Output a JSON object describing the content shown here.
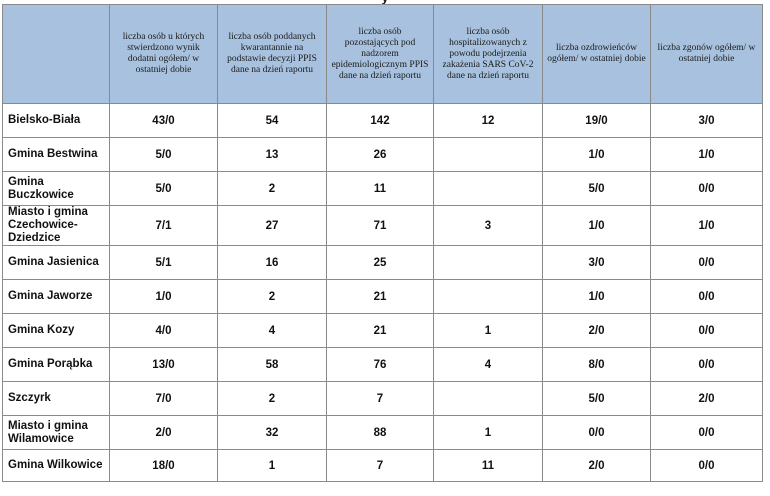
{
  "title": "y",
  "headers": [
    "",
    "liczba osób u których stwierdzono wynik dodatni ogółem/ w ostatniej dobie",
    "liczba osób poddanych kwarantannie na podstawie decyzji PPIS dane na dzień raportu",
    "liczba osób pozostających pod nadzorem epidemiologicznym PPIS dane na dzień raportu",
    "liczba osób hospitalizowanych z powodu podejrzenia zakażenia SARS CoV-2 dane na dzień raportu",
    "liczba ozdrowieńców ogółem/ w ostatniej dobie",
    "liczba zgonów ogółem/ w ostatniej dobie"
  ],
  "rows": [
    [
      "Bielsko-Biała",
      "43/0",
      "54",
      "142",
      "12",
      "19/0",
      "3/0"
    ],
    [
      "Gmina Bestwina",
      "5/0",
      "13",
      "26",
      "",
      "1/0",
      "1/0"
    ],
    [
      "Gmina Buczkowice",
      "5/0",
      "2",
      "11",
      "",
      "5/0",
      "0/0"
    ],
    [
      "Miasto i gmina Czechowice-Dziedzice",
      "7/1",
      "27",
      "71",
      "3",
      "1/0",
      "1/0"
    ],
    [
      "Gmina Jasienica",
      "5/1",
      "16",
      "25",
      "",
      "3/0",
      "0/0"
    ],
    [
      "Gmina Jaworze",
      "1/0",
      "2",
      "21",
      "",
      "1/0",
      "0/0"
    ],
    [
      "Gmina Kozy",
      "4/0",
      "4",
      "21",
      "1",
      "2/0",
      "0/0"
    ],
    [
      "Gmina Porąbka",
      "13/0",
      "58",
      "76",
      "4",
      "8/0",
      "0/0"
    ],
    [
      "Szczyrk",
      "7/0",
      "2",
      "7",
      "",
      "5/0",
      "2/0"
    ],
    [
      "Miasto i gmina Wilamowice",
      "2/0",
      "32",
      "88",
      "1",
      "0/0",
      "0/0"
    ],
    [
      "Gmina Wilkowice",
      "18/0",
      "1",
      "7",
      "11",
      "2/0",
      "0/0"
    ]
  ]
}
